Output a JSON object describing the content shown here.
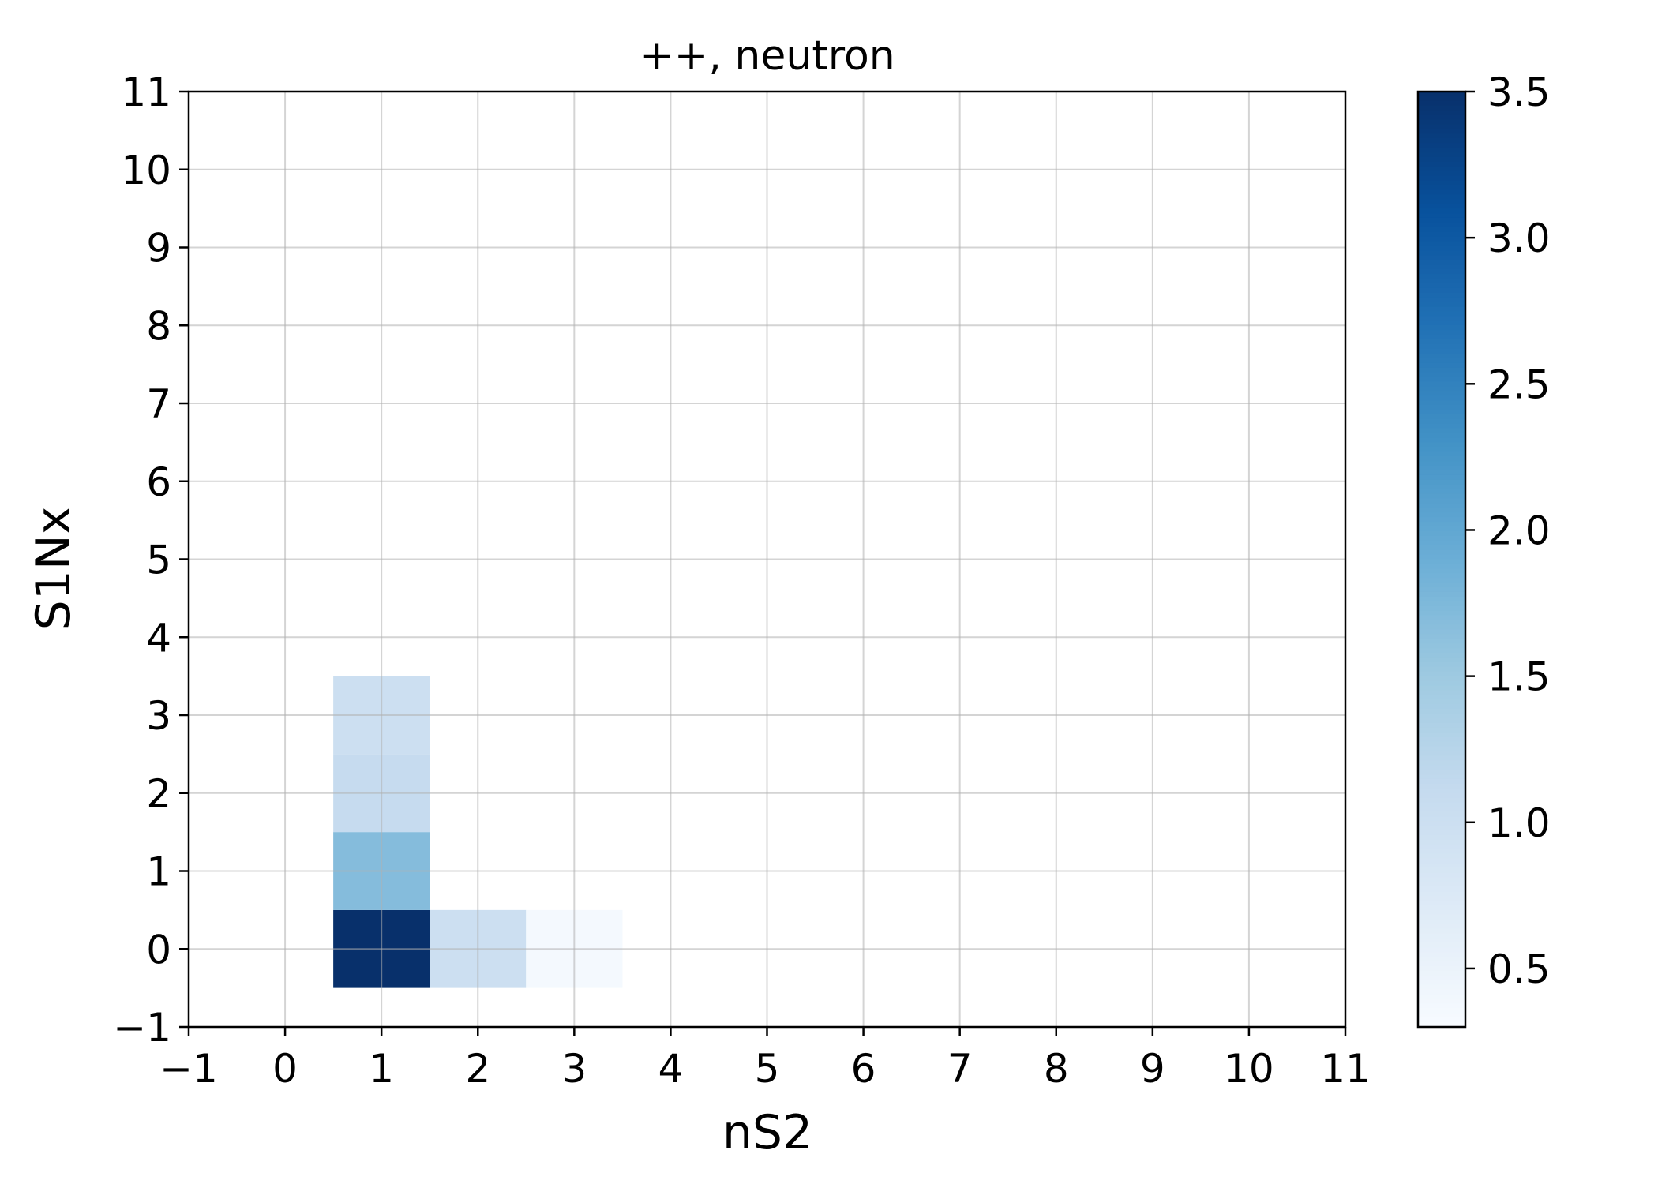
{
  "chart_data": {
    "type": "heatmap",
    "title": "++, neutron",
    "xlabel": "nS2",
    "ylabel": "S1Nx",
    "xlim": [
      -1,
      11
    ],
    "ylim": [
      -1,
      11
    ],
    "x_ticks": [
      "−1",
      "0",
      "1",
      "2",
      "3",
      "4",
      "5",
      "6",
      "7",
      "8",
      "9",
      "10",
      "11"
    ],
    "y_ticks": [
      "−1",
      "0",
      "1",
      "2",
      "3",
      "4",
      "5",
      "6",
      "7",
      "8",
      "9",
      "10",
      "11"
    ],
    "x_tick_values": [
      -1,
      0,
      1,
      2,
      3,
      4,
      5,
      6,
      7,
      8,
      9,
      10,
      11
    ],
    "y_tick_values": [
      -1,
      0,
      1,
      2,
      3,
      4,
      5,
      6,
      7,
      8,
      9,
      10,
      11
    ],
    "grid": true,
    "colormap": "Blues",
    "color_range": [
      0.3,
      3.5
    ],
    "colorbar_ticks": [
      "0.5",
      "1.0",
      "1.5",
      "2.0",
      "2.5",
      "3.0",
      "3.5"
    ],
    "colorbar_tick_values": [
      0.5,
      1.0,
      1.5,
      2.0,
      2.5,
      3.0,
      3.5
    ],
    "cells": [
      {
        "x": 1,
        "y": 0,
        "value": 3.5
      },
      {
        "x": 1,
        "y": 1,
        "value": 1.7
      },
      {
        "x": 1,
        "y": 2,
        "value": 1.1
      },
      {
        "x": 1,
        "y": 3,
        "value": 1.0
      },
      {
        "x": 2,
        "y": 0,
        "value": 1.0
      },
      {
        "x": 3,
        "y": 0,
        "value": 0.35
      }
    ]
  }
}
